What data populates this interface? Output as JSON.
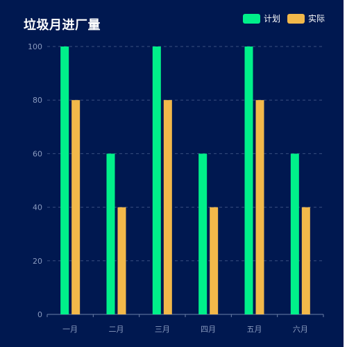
{
  "colors": {
    "background": "#001850",
    "plan": "#00f08a",
    "actual": "#f2b84a"
  },
  "chart_data": {
    "type": "bar",
    "title": "垃圾月进厂量",
    "categories": [
      "一月",
      "二月",
      "三月",
      "四月",
      "五月",
      "六月"
    ],
    "series": [
      {
        "name": "计划",
        "values": [
          100,
          60,
          100,
          60,
          100,
          60
        ]
      },
      {
        "name": "实际",
        "values": [
          80,
          40,
          80,
          40,
          80,
          40
        ]
      }
    ],
    "ylim": [
      0,
      100
    ],
    "yticks": [
      0,
      20,
      40,
      60,
      80,
      100
    ],
    "grid": true,
    "legend_position": "top-right"
  }
}
